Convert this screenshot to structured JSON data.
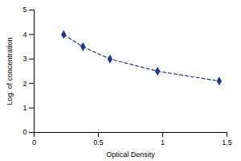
{
  "chart_data": {
    "type": "line",
    "x_label": "Optical Density",
    "y_label": "Log. of concentration",
    "x": [
      0.23,
      0.38,
      0.59,
      0.96,
      1.44
    ],
    "values": [
      4.0,
      3.5,
      3.0,
      2.5,
      2.1
    ],
    "color": "#1f3a93",
    "marker": "diamond",
    "line_style": "dashed",
    "xlim": [
      0,
      1.5
    ],
    "xticks": [
      0,
      0.5,
      1,
      1.5
    ],
    "ylim": [
      0,
      5
    ],
    "yticks": [
      0,
      1,
      2,
      3,
      4,
      5
    ],
    "grid": false
  }
}
